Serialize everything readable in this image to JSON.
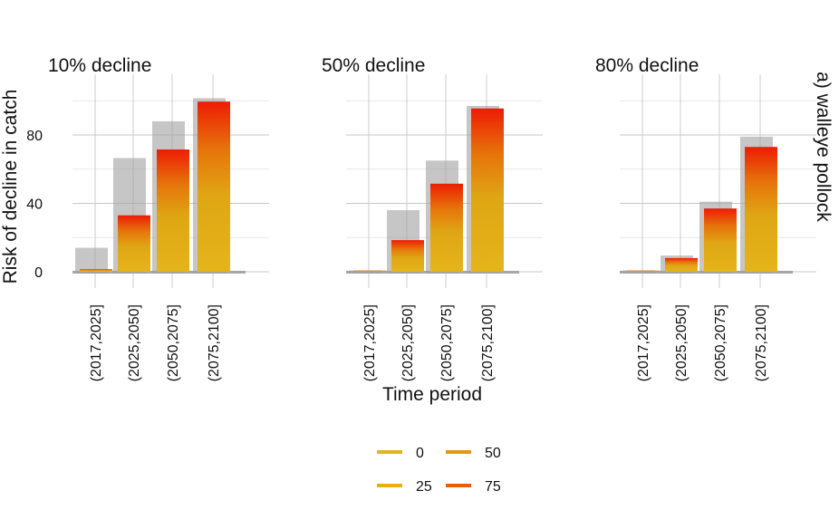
{
  "chart_data": {
    "type": "bar",
    "facet_strip": "a) walleye pollock",
    "ylabel": "Risk of decline in catch",
    "xlabel": "Time period",
    "ylim": [
      -8,
      112
    ],
    "yticks": [
      0,
      40,
      80
    ],
    "grid": true,
    "categories": [
      "(2017,2025]",
      "(2025,2050]",
      "(2050,2075]",
      "(2075,2100]"
    ],
    "panels": [
      {
        "title": "10% decline",
        "values": [
          1.5,
          33,
          71.5,
          99.5
        ],
        "shadow_values": [
          14,
          66.5,
          88,
          101.5
        ]
      },
      {
        "title": "50% decline",
        "values": [
          0.5,
          18.5,
          51.5,
          95.5
        ],
        "shadow_values": [
          0.8,
          36,
          65,
          97
        ]
      },
      {
        "title": "80% decline",
        "values": [
          0.3,
          8,
          37,
          73
        ],
        "shadow_values": [
          0.8,
          9.5,
          41,
          79
        ]
      }
    ],
    "legend": {
      "placement": "bottom",
      "items": [
        {
          "label": "0",
          "color": "#e2b41f"
        },
        {
          "label": "50",
          "color": "#de9a12"
        },
        {
          "label": "25",
          "color": "#e5b10f"
        },
        {
          "label": "75",
          "color": "#e65d0a"
        }
      ]
    },
    "gradient_colors": {
      "bottom": "#e5b41b",
      "mid": "#dd9a12",
      "top": "#ee1c05"
    },
    "shadow_color": "#a0a0a0"
  }
}
